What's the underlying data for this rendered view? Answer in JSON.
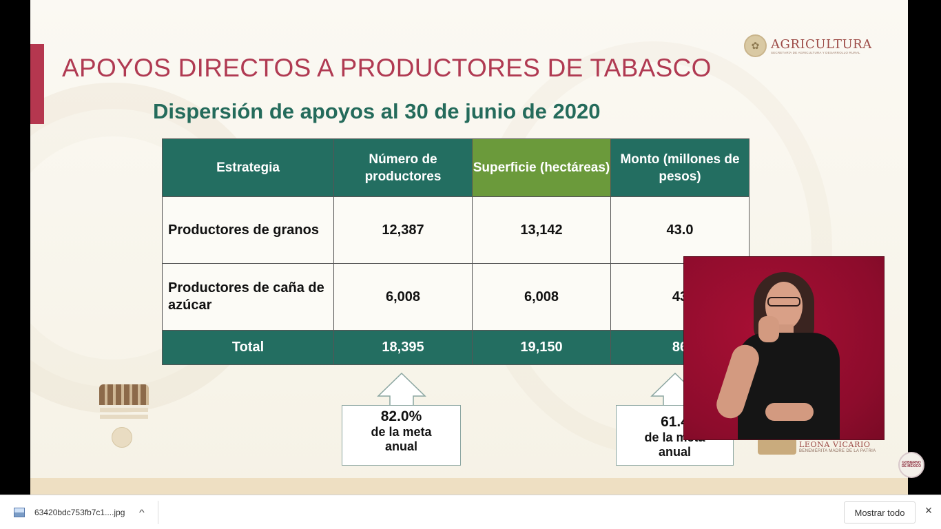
{
  "slide": {
    "title": "APOYOS DIRECTOS A PRODUCTORES DE TABASCO",
    "subtitle": "Dispersión de apoyos al 30 de junio de 2020",
    "logo_agricultura": {
      "name": "AGRICULTURA",
      "tagline": "SECRETARÍA DE AGRICULTURA Y DESARROLLO RURAL"
    },
    "table": {
      "headers": [
        "Estrategia",
        "Número de productores",
        "Superficie (hectáreas)",
        "Monto (millones de pesos)"
      ],
      "rows": [
        {
          "estrategia": "Productores de granos",
          "numero": "12,387",
          "superficie": "13,142",
          "monto": "43.0"
        },
        {
          "estrategia": "Productores de caña de azúcar",
          "numero": "6,008",
          "superficie": "6,008",
          "monto": "43"
        }
      ],
      "total": {
        "label": "Total",
        "numero": "18,395",
        "superficie": "19,150",
        "monto": "86"
      }
    },
    "callouts": [
      {
        "pct": "82.0%",
        "text_1": "de la meta",
        "text_2": "anual"
      },
      {
        "pct": "61.4",
        "text_1": "de la meta",
        "text_2": "anual"
      }
    ],
    "logo_leona": {
      "name": "LEONA VICARIO",
      "tagline": "BENEMÉRITA MADRE DE LA PATRIA"
    },
    "gob_badge": "GOBIERNO DE MÉXICO",
    "colors": {
      "title": "#b03a52",
      "subtitle": "#246b5b",
      "header_bg": "#236e61",
      "highlight_bg": "#6b9a3b",
      "interpreter_bg": "#a80f34"
    }
  },
  "download_bar": {
    "file_name": "63420bdc753fb7c1....jpg",
    "file_icon": "image-file-icon",
    "show_all_label": "Mostrar todo",
    "close_icon": "×",
    "chevron": "^"
  }
}
